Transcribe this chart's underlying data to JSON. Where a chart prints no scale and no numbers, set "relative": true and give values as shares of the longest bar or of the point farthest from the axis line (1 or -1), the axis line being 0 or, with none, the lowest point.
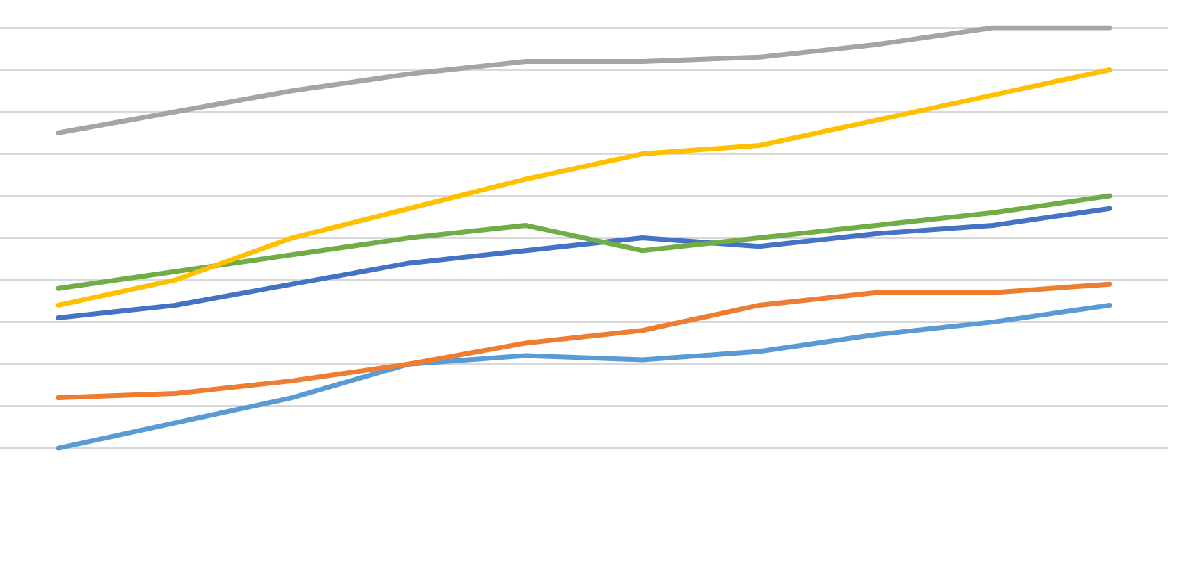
{
  "chart_data": {
    "type": "line",
    "relative": true,
    "grid": "y",
    "legend": false,
    "marker": "none",
    "line_style": "solid",
    "categories": [
      null,
      null,
      null,
      null,
      null,
      null,
      null,
      null,
      null,
      null
    ],
    "series": [
      {
        "color": "#a5a5a5",
        "values": [
          0.75,
          0.8,
          0.85,
          0.89,
          0.92,
          0.92,
          0.93,
          0.96,
          1,
          1
        ]
      },
      {
        "color": "#ffc000",
        "values": [
          0.34,
          0.4,
          0.5,
          0.57,
          0.64,
          0.7,
          0.72,
          0.78,
          0.84,
          0.9
        ]
      },
      {
        "color": "#70ad47",
        "values": [
          0.38,
          0.42,
          0.46,
          0.5,
          0.53,
          0.47,
          0.5,
          0.53,
          0.56,
          0.6
        ]
      },
      {
        "color": "#4472c4",
        "values": [
          0.31,
          0.34,
          0.39,
          0.44,
          0.47,
          0.5,
          0.48,
          0.51,
          0.53,
          0.57
        ]
      },
      {
        "color": "#ed7d31",
        "values": [
          0.12,
          0.13,
          0.16,
          0.2,
          0.25,
          0.28,
          0.34,
          0.37,
          0.37,
          0.39
        ]
      },
      {
        "color": "#5b9bd5",
        "values": [
          0,
          0.06,
          0.12,
          0.2,
          0.22,
          0.21,
          0.23,
          0.27,
          0.3,
          0.34
        ]
      }
    ]
  }
}
